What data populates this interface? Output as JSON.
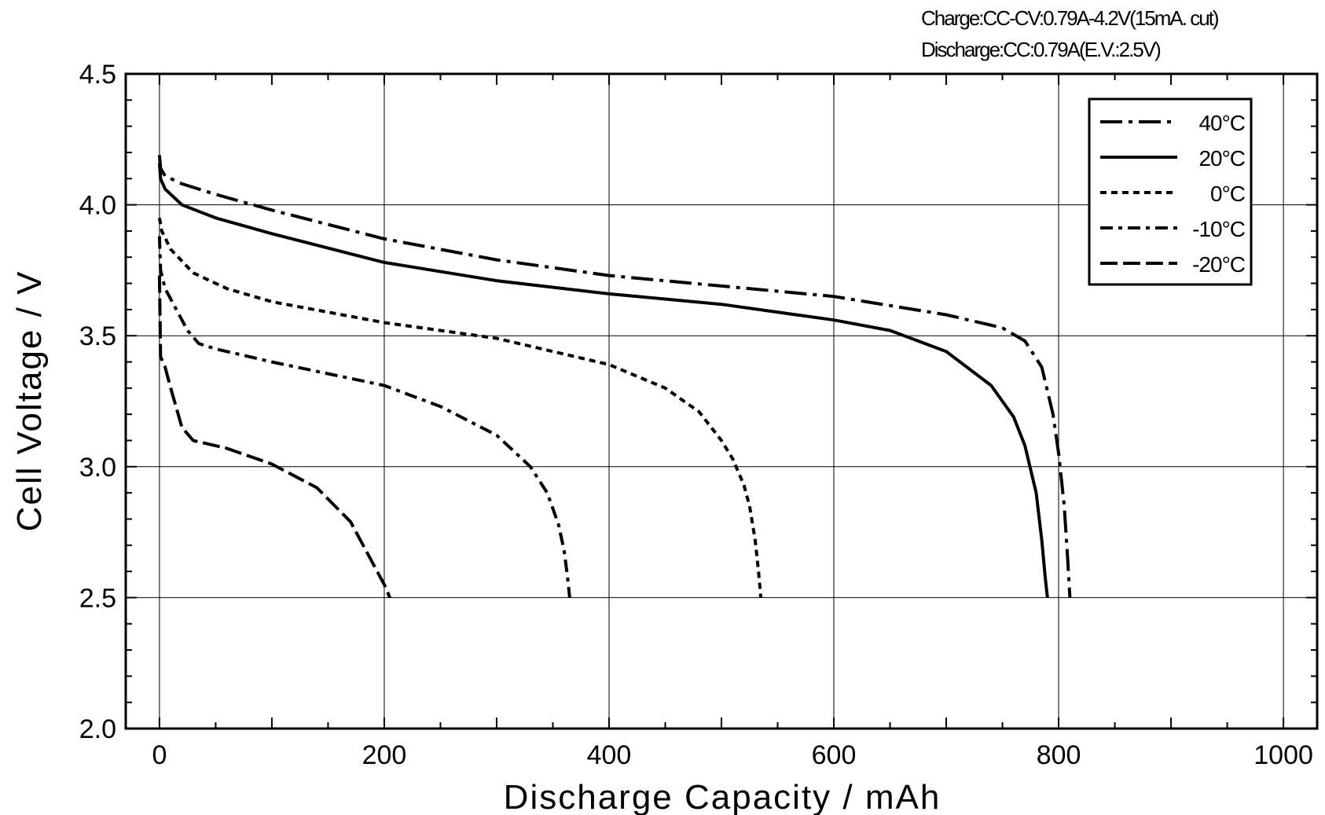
{
  "conditions": {
    "charge": "Charge:CC-CV:0.79A-4.2V(15mA. cut)",
    "discharge": "Discharge:CC:0.79A(E.V.:2.5V)"
  },
  "chart_data": {
    "type": "line",
    "title": "",
    "xlabel": "Discharge  Capacity  /  mAh",
    "ylabel": "Cell  Voltage  /  V",
    "xlim": [
      -30,
      1030
    ],
    "ylim": [
      2.0,
      4.5
    ],
    "xticks": [
      "0",
      "200",
      "400",
      "600",
      "800",
      "1000"
    ],
    "yticks": [
      "2.0",
      "2.5",
      "3.0",
      "3.5",
      "4.0",
      "4.5"
    ],
    "grid": true,
    "legend_position": "top-right",
    "series": [
      {
        "name": "40°C",
        "dash": "dashdot",
        "x": [
          0,
          1,
          5,
          20,
          50,
          100,
          200,
          300,
          400,
          500,
          600,
          700,
          750,
          770,
          785,
          795,
          800,
          805,
          808,
          810
        ],
        "y": [
          4.19,
          4.14,
          4.11,
          4.08,
          4.04,
          3.98,
          3.87,
          3.79,
          3.73,
          3.69,
          3.65,
          3.58,
          3.53,
          3.48,
          3.38,
          3.2,
          3.05,
          2.85,
          2.65,
          2.5
        ]
      },
      {
        "name": "20°C",
        "dash": "solid",
        "x": [
          0,
          1,
          5,
          20,
          50,
          100,
          200,
          300,
          400,
          500,
          600,
          650,
          700,
          740,
          760,
          770,
          780,
          785,
          788,
          790
        ],
        "y": [
          4.16,
          4.1,
          4.06,
          4.0,
          3.95,
          3.89,
          3.78,
          3.71,
          3.66,
          3.62,
          3.56,
          3.52,
          3.44,
          3.31,
          3.19,
          3.08,
          2.9,
          2.72,
          2.58,
          2.5
        ]
      },
      {
        "name": "0°C",
        "dash": "dot",
        "x": [
          0,
          2,
          10,
          30,
          60,
          100,
          200,
          300,
          400,
          450,
          480,
          500,
          510,
          520,
          525,
          530,
          533,
          535
        ],
        "y": [
          3.95,
          3.9,
          3.83,
          3.74,
          3.68,
          3.63,
          3.55,
          3.49,
          3.39,
          3.3,
          3.21,
          3.1,
          3.03,
          2.93,
          2.85,
          2.72,
          2.6,
          2.5
        ]
      },
      {
        "name": "-10°C",
        "dash": "dashdot2",
        "x": [
          0,
          1,
          5,
          15,
          25,
          35,
          50,
          100,
          200,
          250,
          300,
          330,
          345,
          355,
          360,
          363,
          365
        ],
        "y": [
          3.88,
          3.75,
          3.68,
          3.6,
          3.52,
          3.47,
          3.45,
          3.4,
          3.31,
          3.23,
          3.12,
          3.0,
          2.9,
          2.78,
          2.68,
          2.58,
          2.5
        ]
      },
      {
        "name": "-20°C",
        "dash": "dash",
        "x": [
          0,
          1,
          5,
          10,
          20,
          30,
          40,
          60,
          100,
          140,
          170,
          190,
          200,
          205
        ],
        "y": [
          3.73,
          3.42,
          3.38,
          3.3,
          3.15,
          3.1,
          3.09,
          3.07,
          3.01,
          2.92,
          2.79,
          2.63,
          2.55,
          2.5
        ]
      }
    ]
  }
}
